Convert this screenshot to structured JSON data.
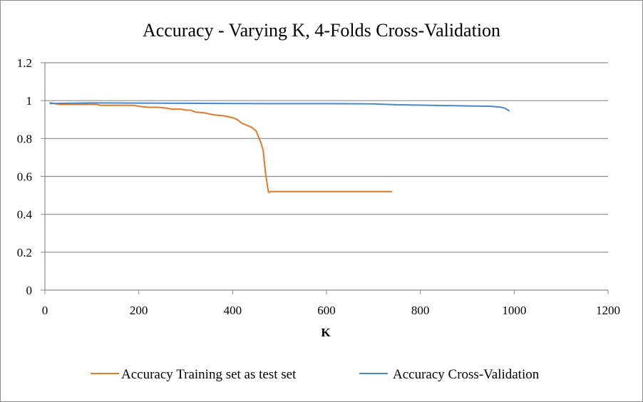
{
  "chart_data": {
    "type": "line",
    "title": "Accuracy - Varying K, 4-Folds Cross-Validation",
    "xlabel": "K",
    "ylabel": "",
    "xlim": [
      0,
      1200
    ],
    "ylim": [
      0,
      1.2
    ],
    "x_ticks": [
      "0",
      "200",
      "400",
      "600",
      "800",
      "1000",
      "1200"
    ],
    "y_ticks": [
      "0",
      "0.2",
      "0.4",
      "0.6",
      "0.8",
      "1",
      "1.2"
    ],
    "grid": "horizontal",
    "legend_position": "bottom",
    "series": [
      {
        "name": "Accuracy Training set as test set",
        "color": "#e07b2c",
        "x": [
          10,
          20,
          30,
          50,
          80,
          110,
          120,
          150,
          180,
          190,
          200,
          220,
          240,
          260,
          270,
          290,
          300,
          310,
          320,
          340,
          350,
          360,
          380,
          400,
          410,
          420,
          430,
          440,
          450,
          455,
          460,
          465,
          470,
          474,
          476,
          478,
          480,
          485,
          490,
          500,
          550,
          600,
          650,
          700,
          740
        ],
        "y": [
          0.99,
          0.985,
          0.98,
          0.98,
          0.98,
          0.98,
          0.975,
          0.975,
          0.975,
          0.975,
          0.97,
          0.965,
          0.965,
          0.96,
          0.955,
          0.955,
          0.95,
          0.95,
          0.94,
          0.935,
          0.93,
          0.925,
          0.92,
          0.91,
          0.9,
          0.88,
          0.87,
          0.86,
          0.84,
          0.81,
          0.78,
          0.74,
          0.62,
          0.55,
          0.52,
          0.515,
          0.52,
          0.52,
          0.52,
          0.52,
          0.52,
          0.52,
          0.52,
          0.52,
          0.52
        ]
      },
      {
        "name": "Accuracy Cross-Validation",
        "color": "#4a86c8",
        "x": [
          10,
          100,
          200,
          300,
          400,
          500,
          600,
          700,
          750,
          800,
          850,
          900,
          950,
          970,
          980,
          990
        ],
        "y": [
          0.985,
          0.988,
          0.987,
          0.986,
          0.985,
          0.984,
          0.984,
          0.983,
          0.978,
          0.976,
          0.974,
          0.972,
          0.97,
          0.966,
          0.96,
          0.945
        ]
      }
    ]
  }
}
